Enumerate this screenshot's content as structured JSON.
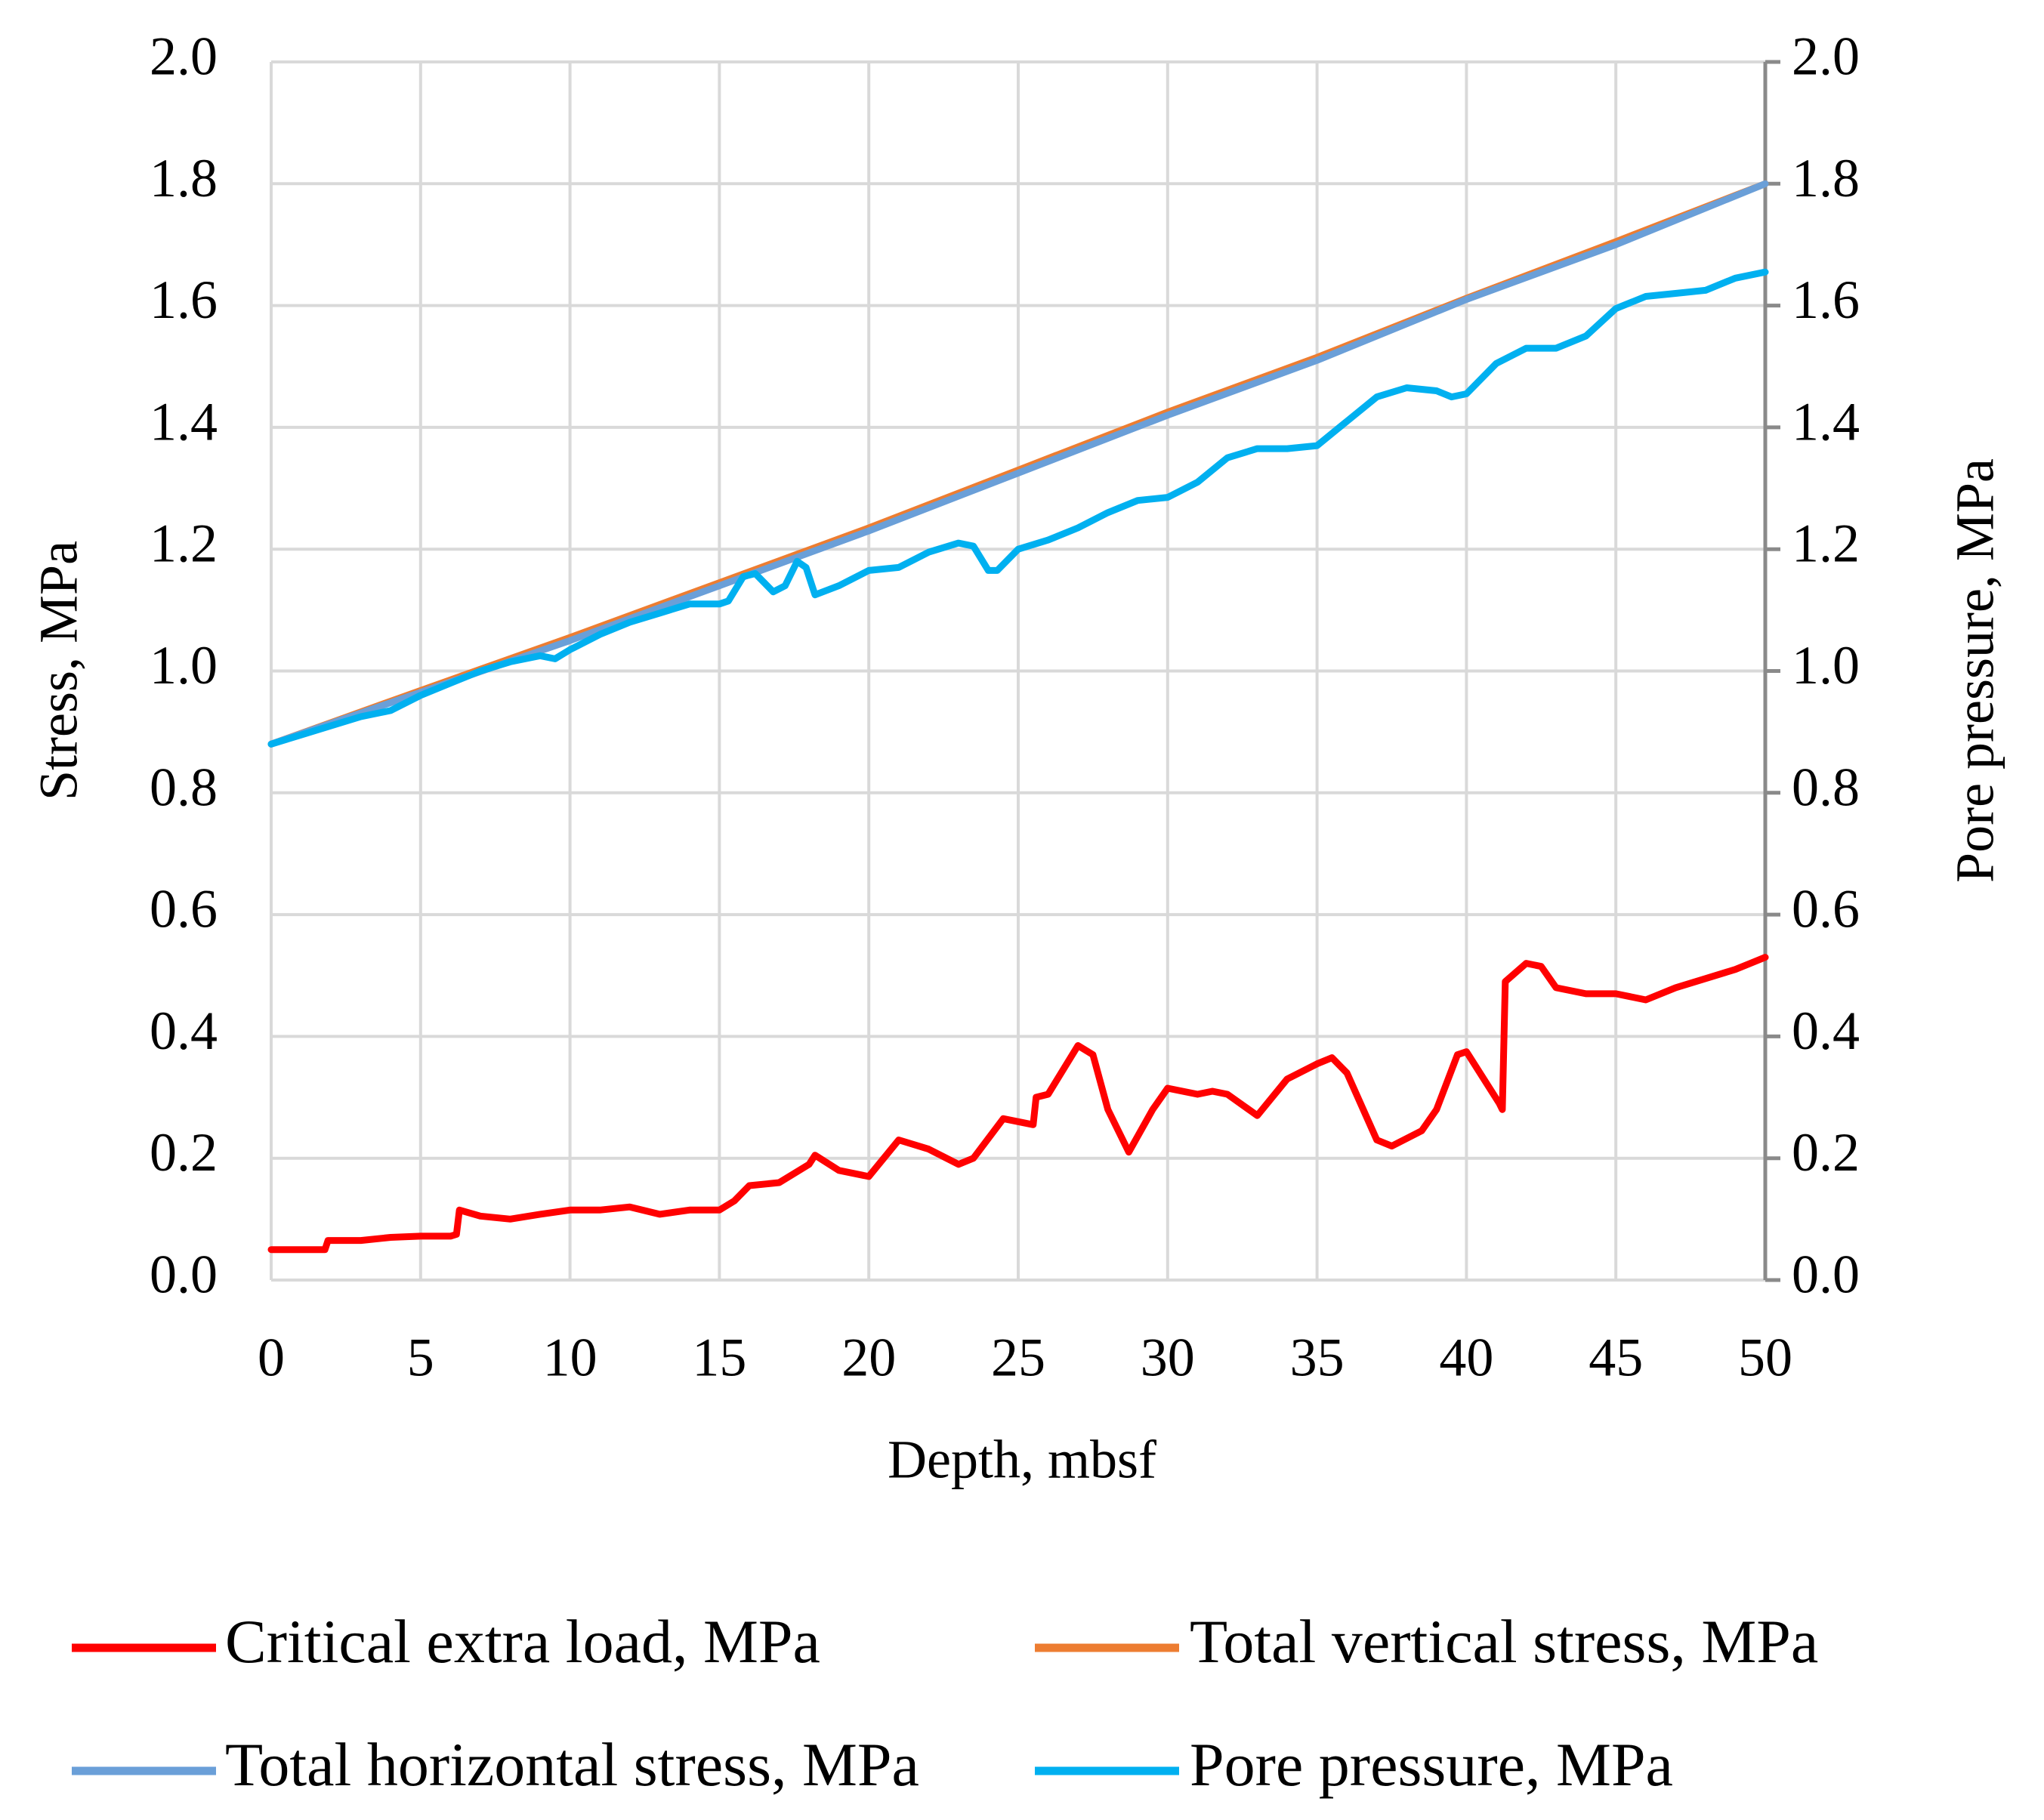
{
  "chart_data": {
    "type": "line",
    "xlabel": "Depth, mbsf",
    "ylabel": "Stress, MPa",
    "y2label": "Pore pressure, MPa",
    "xlim": [
      0,
      50
    ],
    "xticks": [
      0,
      5,
      10,
      15,
      20,
      25,
      30,
      35,
      40,
      45,
      50
    ],
    "ylim": [
      0,
      2
    ],
    "yticks": [
      {
        "value": 0,
        "label": "0.0"
      },
      0.2,
      0.4,
      0.6,
      0.8,
      {
        "value": 1,
        "label": "1.0"
      },
      1.2,
      1.4,
      1.6,
      1.8,
      {
        "value": 2,
        "label": "2.0"
      }
    ],
    "y2lim": [
      0,
      2
    ],
    "y2ticks": [
      {
        "value": 0,
        "label": "0.0"
      },
      0.2,
      0.4,
      0.6,
      0.8,
      {
        "value": 1,
        "label": "1.0"
      },
      1.2,
      1.4,
      1.6,
      1.8,
      {
        "value": 2,
        "label": "2.0"
      }
    ],
    "grid": true,
    "legend": "bottom",
    "series": [
      {
        "name": "Critical extra load, MPa",
        "color": "#ff0000",
        "x": [
          0,
          1.8,
          1.9,
          3,
          4,
          5,
          6,
          6.2,
          6.3,
          7,
          8,
          9,
          10,
          11,
          12,
          13,
          14,
          15,
          15.5,
          16,
          17,
          18,
          18.2,
          19,
          20,
          21,
          22,
          23,
          23.5,
          24.5,
          25.5,
          25.6,
          26,
          27,
          27.5,
          28,
          28.7,
          29.5,
          30,
          31,
          31.5,
          32,
          33,
          34,
          35,
          35.5,
          36,
          37,
          37.5,
          38.5,
          39,
          39.7,
          40,
          41.1,
          41.2,
          41.3,
          42,
          42.5,
          43,
          44,
          45,
          46,
          47,
          48,
          49,
          50
        ],
        "values": [
          0.05,
          0.05,
          0.065,
          0.065,
          0.07,
          0.072,
          0.072,
          0.075,
          0.115,
          0.105,
          0.1,
          0.108,
          0.115,
          0.115,
          0.12,
          0.108,
          0.115,
          0.115,
          0.13,
          0.155,
          0.16,
          0.19,
          0.205,
          0.18,
          0.17,
          0.23,
          0.215,
          0.19,
          0.2,
          0.265,
          0.255,
          0.3,
          0.305,
          0.385,
          0.37,
          0.28,
          0.21,
          0.28,
          0.315,
          0.305,
          0.31,
          0.305,
          0.27,
          0.33,
          0.355,
          0.365,
          0.34,
          0.23,
          0.22,
          0.245,
          0.28,
          0.37,
          0.375,
          0.29,
          0.28,
          0.49,
          0.52,
          0.515,
          0.48,
          0.47,
          0.47,
          0.46,
          0.48,
          0.495,
          0.51,
          0.53
        ]
      },
      {
        "name": "Total vertical stress, MPa",
        "color": "#ed7d31",
        "x": [
          0,
          5,
          10,
          15,
          20,
          25,
          30,
          35,
          40,
          45,
          50
        ],
        "values": [
          0.88,
          0.968,
          1.055,
          1.145,
          1.235,
          1.33,
          1.425,
          1.515,
          1.612,
          1.705,
          1.8
        ]
      },
      {
        "name": "Total horizontal stress, MPa",
        "color": "#6a9fd8",
        "x": [
          0,
          5,
          10,
          15,
          20,
          25,
          30,
          35,
          40,
          45,
          50
        ],
        "values": [
          0.88,
          0.965,
          1.05,
          1.14,
          1.23,
          1.325,
          1.42,
          1.51,
          1.61,
          1.7,
          1.8
        ]
      },
      {
        "name": "Pore pressure, MPa",
        "color": "#00b0f0",
        "axis": "y2",
        "x": [
          0,
          1,
          2,
          3,
          4,
          5,
          6,
          7,
          8,
          9,
          9.5,
          10,
          11,
          12,
          13,
          14,
          15,
          15.3,
          15.8,
          16.2,
          16.8,
          17.2,
          17.6,
          17.9,
          18.2,
          19,
          20,
          21,
          22,
          23,
          23.5,
          24,
          24.3,
          25,
          26,
          27,
          28,
          29,
          30,
          31,
          32,
          33,
          34,
          35,
          36,
          37,
          38,
          39,
          39.5,
          40,
          41,
          42,
          43,
          44,
          45,
          46,
          47,
          48,
          49,
          50
        ],
        "values": [
          0.88,
          0.895,
          0.91,
          0.925,
          0.935,
          0.96,
          0.98,
          1.0,
          1.015,
          1.025,
          1.02,
          1.035,
          1.06,
          1.08,
          1.095,
          1.11,
          1.11,
          1.115,
          1.155,
          1.16,
          1.13,
          1.14,
          1.18,
          1.17,
          1.125,
          1.14,
          1.165,
          1.17,
          1.195,
          1.21,
          1.205,
          1.165,
          1.165,
          1.2,
          1.215,
          1.235,
          1.26,
          1.28,
          1.285,
          1.31,
          1.35,
          1.365,
          1.365,
          1.37,
          1.41,
          1.45,
          1.465,
          1.46,
          1.45,
          1.455,
          1.505,
          1.53,
          1.53,
          1.55,
          1.595,
          1.615,
          1.62,
          1.625,
          1.645,
          1.655
        ]
      }
    ]
  }
}
